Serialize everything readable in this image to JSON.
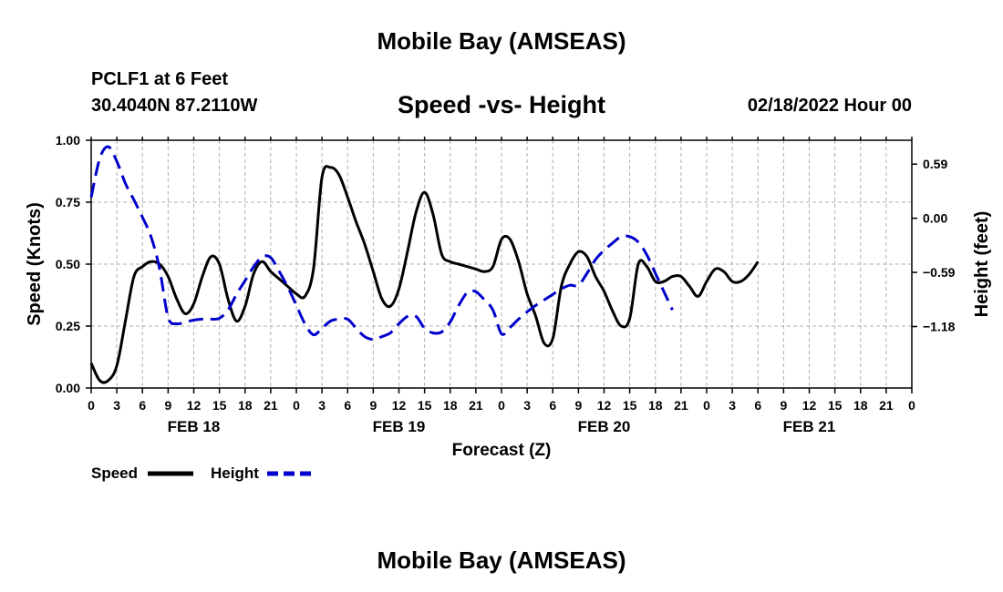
{
  "chart_data": {
    "type": "line",
    "title": "Mobile Bay (AMSEAS)",
    "subtitle": "Speed -vs- Height",
    "station": "PCLF1 at 6 Feet",
    "location": "30.4040N  87.2110W",
    "datetime": "02/18/2022 Hour 00",
    "xlabel": "Forecast (Z)",
    "ylabel_left": "Speed (Knots)",
    "ylabel_right": "Height (feet)",
    "x_range_hours": [
      0,
      96
    ],
    "ylim_left": [
      0,
      1.0
    ],
    "ylim_right": [
      -1.85,
      0.85
    ],
    "left_ticks": [
      "0.00",
      "0.25",
      "0.50",
      "0.75",
      "1.00"
    ],
    "right_ticks": [
      "0.59",
      "0.00",
      "−0.59",
      "−1.18"
    ],
    "right_tick_values": [
      0.59,
      0.0,
      -0.59,
      -1.18
    ],
    "hour_tick_labels": [
      "0",
      "3",
      "6",
      "9",
      "12",
      "15",
      "18",
      "21",
      "0",
      "3",
      "6",
      "9",
      "12",
      "15",
      "18",
      "21",
      "0",
      "3",
      "6",
      "9",
      "12",
      "15",
      "18",
      "21",
      "0",
      "3",
      "6",
      "9",
      "12",
      "15",
      "18",
      "21",
      "0"
    ],
    "day_labels": [
      {
        "label": "FEB 18",
        "hour": 12
      },
      {
        "label": "FEB 19",
        "hour": 36
      },
      {
        "label": "FEB 20",
        "hour": 60
      },
      {
        "label": "FEB 21",
        "hour": 84
      }
    ],
    "series": [
      {
        "name": "Speed",
        "color": "#000000",
        "style": "solid",
        "axis": "left",
        "points": [
          [
            0,
            0.1
          ],
          [
            1,
            0.03
          ],
          [
            2,
            0.03
          ],
          [
            3,
            0.09
          ],
          [
            4,
            0.27
          ],
          [
            5,
            0.45
          ],
          [
            6,
            0.49
          ],
          [
            7,
            0.51
          ],
          [
            8,
            0.5
          ],
          [
            9,
            0.45
          ],
          [
            10,
            0.36
          ],
          [
            11,
            0.3
          ],
          [
            12,
            0.34
          ],
          [
            13,
            0.45
          ],
          [
            14,
            0.53
          ],
          [
            15,
            0.5
          ],
          [
            16,
            0.36
          ],
          [
            17,
            0.27
          ],
          [
            18,
            0.33
          ],
          [
            19,
            0.46
          ],
          [
            20,
            0.51
          ],
          [
            21,
            0.47
          ],
          [
            22,
            0.44
          ],
          [
            23,
            0.41
          ],
          [
            24,
            0.38
          ],
          [
            25,
            0.37
          ],
          [
            26,
            0.48
          ],
          [
            27,
            0.85
          ],
          [
            28,
            0.89
          ],
          [
            29,
            0.86
          ],
          [
            30,
            0.77
          ],
          [
            31,
            0.67
          ],
          [
            32,
            0.58
          ],
          [
            33,
            0.47
          ],
          [
            34,
            0.36
          ],
          [
            35,
            0.33
          ],
          [
            36,
            0.4
          ],
          [
            37,
            0.55
          ],
          [
            38,
            0.71
          ],
          [
            39,
            0.79
          ],
          [
            40,
            0.7
          ],
          [
            41,
            0.54
          ],
          [
            42,
            0.51
          ],
          [
            43,
            0.5
          ],
          [
            44,
            0.49
          ],
          [
            45,
            0.48
          ],
          [
            46,
            0.47
          ],
          [
            47,
            0.49
          ],
          [
            48,
            0.6
          ],
          [
            49,
            0.6
          ],
          [
            50,
            0.51
          ],
          [
            51,
            0.38
          ],
          [
            52,
            0.29
          ],
          [
            53,
            0.18
          ],
          [
            54,
            0.2
          ],
          [
            55,
            0.41
          ],
          [
            56,
            0.5
          ],
          [
            57,
            0.55
          ],
          [
            58,
            0.53
          ],
          [
            59,
            0.45
          ],
          [
            60,
            0.39
          ],
          [
            61,
            0.31
          ],
          [
            62,
            0.25
          ],
          [
            63,
            0.28
          ],
          [
            64,
            0.5
          ],
          [
            65,
            0.49
          ],
          [
            66,
            0.43
          ],
          [
            67,
            0.43
          ],
          [
            68,
            0.45
          ],
          [
            69,
            0.45
          ],
          [
            70,
            0.41
          ],
          [
            71,
            0.37
          ],
          [
            72,
            0.43
          ],
          [
            73,
            0.48
          ],
          [
            74,
            0.47
          ],
          [
            75,
            0.43
          ],
          [
            76,
            0.43
          ],
          [
            77,
            0.46
          ],
          [
            78,
            0.51
          ]
        ]
      },
      {
        "name": "Height",
        "color": "#0000cc",
        "style": "dashed",
        "axis": "right",
        "points": [
          [
            0,
            0.23
          ],
          [
            1,
            0.65
          ],
          [
            2,
            0.78
          ],
          [
            3,
            0.62
          ],
          [
            4,
            0.38
          ],
          [
            5,
            0.2
          ],
          [
            6,
            0.01
          ],
          [
            7,
            -0.2
          ],
          [
            8,
            -0.55
          ],
          [
            9,
            -1.08
          ],
          [
            10,
            -1.15
          ],
          [
            11,
            -1.13
          ],
          [
            12,
            -1.11
          ],
          [
            13,
            -1.1
          ],
          [
            14,
            -1.1
          ],
          [
            15,
            -1.09
          ],
          [
            16,
            -1.0
          ],
          [
            17,
            -0.83
          ],
          [
            18,
            -0.68
          ],
          [
            19,
            -0.53
          ],
          [
            20,
            -0.42
          ],
          [
            21,
            -0.43
          ],
          [
            22,
            -0.58
          ],
          [
            23,
            -0.75
          ],
          [
            24,
            -0.95
          ],
          [
            25,
            -1.15
          ],
          [
            26,
            -1.27
          ],
          [
            27,
            -1.2
          ],
          [
            28,
            -1.12
          ],
          [
            29,
            -1.1
          ],
          [
            30,
            -1.1
          ],
          [
            31,
            -1.2
          ],
          [
            32,
            -1.29
          ],
          [
            33,
            -1.32
          ],
          [
            34,
            -1.29
          ],
          [
            35,
            -1.25
          ],
          [
            36,
            -1.15
          ],
          [
            37,
            -1.07
          ],
          [
            38,
            -1.07
          ],
          [
            39,
            -1.2
          ],
          [
            40,
            -1.25
          ],
          [
            41,
            -1.24
          ],
          [
            42,
            -1.13
          ],
          [
            43,
            -0.95
          ],
          [
            44,
            -0.81
          ],
          [
            45,
            -0.8
          ],
          [
            46,
            -0.89
          ],
          [
            47,
            -1.0
          ],
          [
            48,
            -1.26
          ],
          [
            49,
            -1.19
          ],
          [
            50,
            -1.1
          ],
          [
            51,
            -1.02
          ],
          [
            52,
            -0.95
          ],
          [
            53,
            -0.89
          ],
          [
            54,
            -0.83
          ],
          [
            55,
            -0.77
          ],
          [
            56,
            -0.73
          ],
          [
            57,
            -0.73
          ],
          [
            58,
            -0.6
          ],
          [
            59,
            -0.45
          ],
          [
            60,
            -0.35
          ],
          [
            61,
            -0.27
          ],
          [
            62,
            -0.2
          ],
          [
            63,
            -0.2
          ],
          [
            64,
            -0.26
          ],
          [
            65,
            -0.4
          ],
          [
            66,
            -0.6
          ],
          [
            67,
            -0.8
          ],
          [
            68,
            -1.0
          ]
        ]
      }
    ],
    "legend": {
      "speed_label": "Speed",
      "height_label": "Height"
    }
  }
}
